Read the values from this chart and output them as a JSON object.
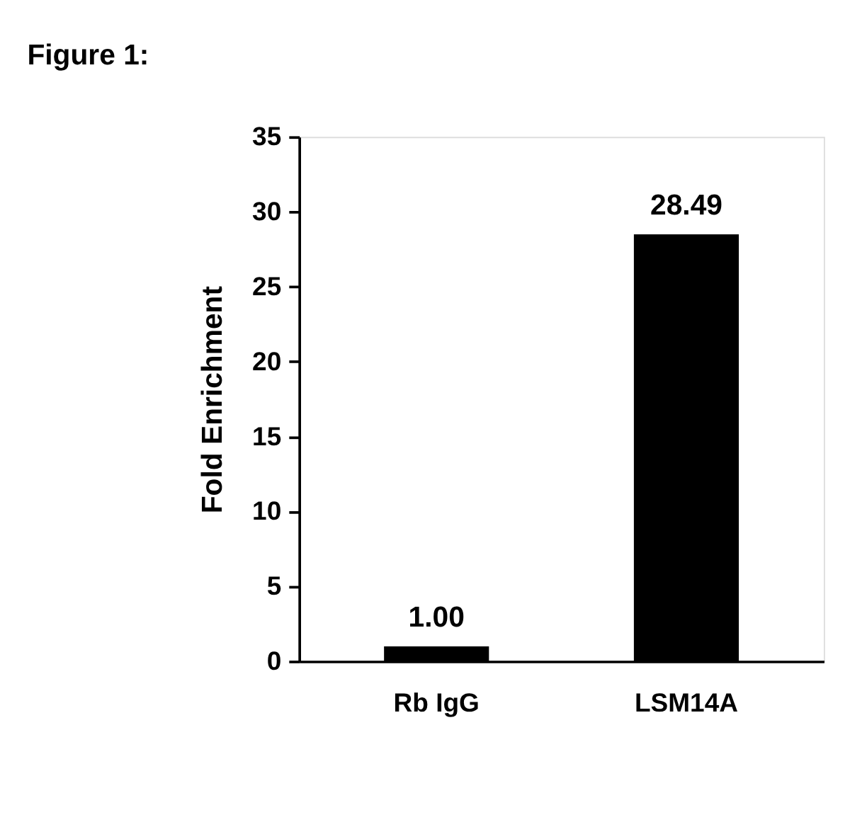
{
  "chart_data": {
    "type": "bar",
    "title": "Figure 1:",
    "ylabel": "Fold Enrichment",
    "categories": [
      "Rb IgG",
      "LSM14A"
    ],
    "values": [
      1.0,
      28.49
    ],
    "value_labels": [
      "1.00",
      "28.49"
    ],
    "color": "#000000",
    "ylim": [
      0,
      35
    ],
    "yticks": [
      0,
      5,
      10,
      15,
      20,
      25,
      30,
      35
    ],
    "grid": false
  }
}
